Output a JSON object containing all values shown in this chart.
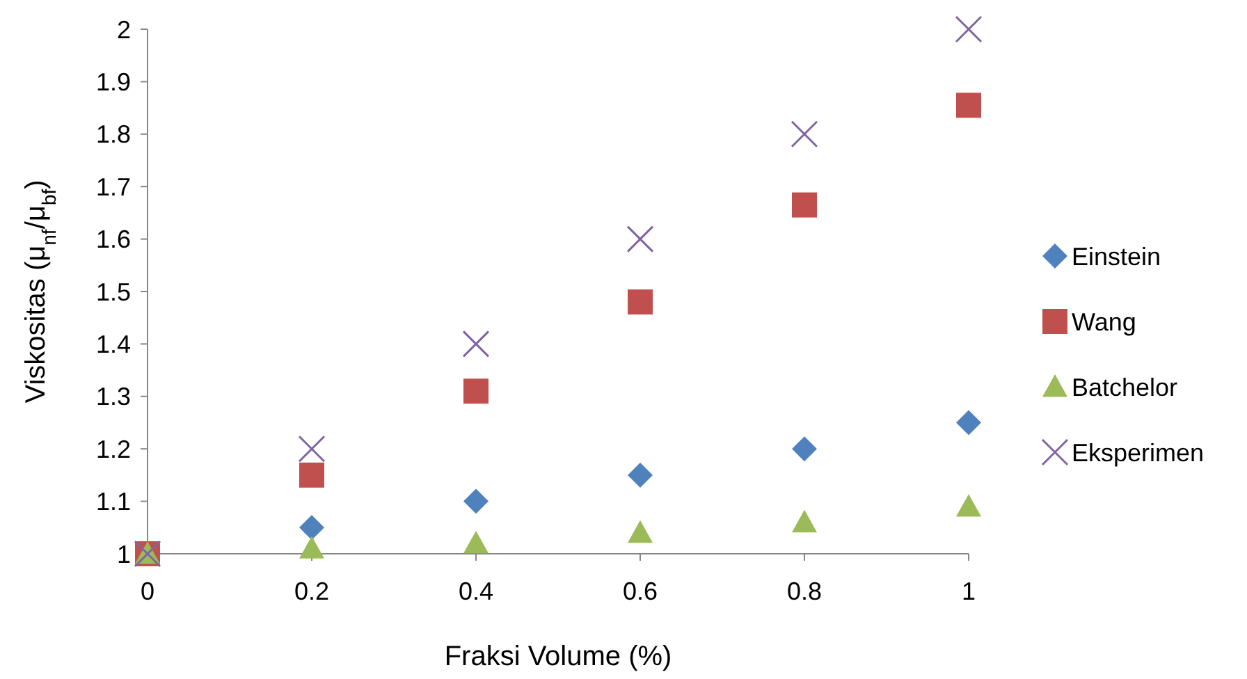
{
  "chart_data": {
    "type": "scatter",
    "xlabel": "Fraksi Volume (%)",
    "ylabel": "Viskositas (μ$_{nf}$/μ$_{bf}$)",
    "x": [
      0,
      0.2,
      0.4,
      0.6,
      0.8,
      1
    ],
    "xlim": [
      0,
      1
    ],
    "xticks": [
      0,
      0.2,
      0.4,
      0.6,
      0.8,
      1
    ],
    "ylim": [
      1,
      2
    ],
    "yticks": [
      1,
      1.1,
      1.2,
      1.3,
      1.4,
      1.5,
      1.6,
      1.7,
      1.8,
      1.9,
      2
    ],
    "legend": "right",
    "grid": false,
    "series": [
      {
        "name": "Einstein",
        "color": "#4f81bd",
        "marker": "diamond",
        "values": [
          null,
          1.05,
          1.1,
          1.15,
          1.2,
          1.25
        ]
      },
      {
        "name": "Wang",
        "color": "#c0504d",
        "marker": "square",
        "values": [
          1,
          1.15,
          1.31,
          1.48,
          1.665,
          1.855
        ]
      },
      {
        "name": "Batchelor",
        "color": "#9bbb59",
        "marker": "triangle",
        "values": [
          1,
          1.01,
          1.02,
          1.04,
          1.06,
          1.09
        ]
      },
      {
        "name": "Eksperimen",
        "color": "#8064a2",
        "marker": "cross",
        "values": [
          1,
          1.2,
          1.4,
          1.6,
          1.8,
          2
        ]
      }
    ]
  }
}
